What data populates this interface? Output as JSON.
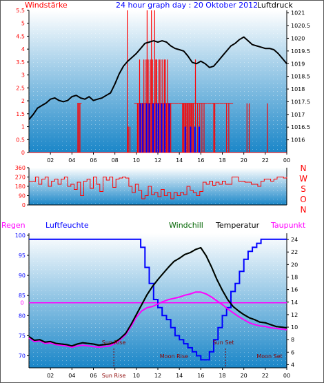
{
  "header": {
    "left": "Windstärke",
    "title": "24 hour graph day : 20 Oktober 2012",
    "right": "Luftdruck"
  },
  "footer": {
    "regen": "Regen",
    "luftfeuchte": "Luftfeuchte",
    "windchill": "Windchill",
    "temperatur": "Temperatur",
    "taupunkt": "Taupunkt"
  },
  "colors": {
    "red": "#ff0000",
    "blue": "#0000ff",
    "green": "#006400",
    "magenta": "#ff00ff",
    "black": "#000000",
    "panel_top": "#ffffff",
    "panel_bottom": "#1a86c8"
  },
  "chart_data": [
    {
      "type": "line",
      "title": "24 hour graph day : 20 Oktober 2012",
      "xlabel": "",
      "ylabel_left": "Windstärke",
      "ylabel_right": "Luftdruck",
      "x_ticks": [
        "02",
        "04",
        "06",
        "08",
        "10",
        "12",
        "14",
        "16",
        "18",
        "20",
        "22",
        "00"
      ],
      "ylim_left": [
        0,
        5.5
      ],
      "y_left_ticks": [
        "0",
        "0.5",
        "1",
        "1.5",
        "2",
        "2.5",
        "3",
        "3.5",
        "4",
        "4.5",
        "5",
        "5.5"
      ],
      "ylim_right": [
        1015.5,
        1021.1
      ],
      "y_right_ticks": [
        "1016",
        "1016.5",
        "1017",
        "1017.5",
        "1018",
        "1018.5",
        "1019",
        "1019.5",
        "1020",
        "1020.5",
        "1021"
      ],
      "series": [
        {
          "name": "Luftdruck",
          "axis": "right",
          "x": [
            0.0,
            0.4,
            0.8,
            1.2,
            1.6,
            2.0,
            2.4,
            2.8,
            3.2,
            3.6,
            4.0,
            4.4,
            4.8,
            5.2,
            5.6,
            6.0,
            6.4,
            6.8,
            7.2,
            7.6,
            8.0,
            8.4,
            8.8,
            9.2,
            9.6,
            10.0,
            10.4,
            10.8,
            11.2,
            11.6,
            12.0,
            12.4,
            12.8,
            13.2,
            13.6,
            14.0,
            14.4,
            14.8,
            15.2,
            15.6,
            16.0,
            16.4,
            16.8,
            17.2,
            17.6,
            18.0,
            18.4,
            18.8,
            19.2,
            19.6,
            20.0,
            20.4,
            20.8,
            21.2,
            21.6,
            22.0,
            22.4,
            22.8,
            23.2,
            23.6,
            24.0
          ],
          "values": [
            1016.8,
            1017.0,
            1017.25,
            1017.35,
            1017.45,
            1017.6,
            1017.65,
            1017.55,
            1017.5,
            1017.55,
            1017.7,
            1017.75,
            1017.65,
            1017.6,
            1017.7,
            1017.55,
            1017.6,
            1017.65,
            1017.75,
            1017.85,
            1018.2,
            1018.6,
            1018.9,
            1019.1,
            1019.25,
            1019.4,
            1019.6,
            1019.8,
            1019.85,
            1019.9,
            1019.85,
            1019.9,
            1019.85,
            1019.7,
            1019.6,
            1019.55,
            1019.5,
            1019.3,
            1019.05,
            1019.0,
            1019.1,
            1019.0,
            1018.85,
            1018.9,
            1019.1,
            1019.3,
            1019.5,
            1019.7,
            1019.8,
            1019.95,
            1020.05,
            1019.9,
            1019.75,
            1019.7,
            1019.65,
            1019.6,
            1019.6,
            1019.55,
            1019.4,
            1019.2,
            1019.0
          ]
        },
        {
          "name": "Windstärke",
          "axis": "left",
          "x": [
            4.55,
            4.65,
            4.75,
            9.15,
            9.25,
            9.4,
            10.1,
            10.2,
            10.3,
            10.45,
            10.55,
            10.7,
            10.8,
            10.9,
            11.0,
            11.1,
            11.2,
            11.3,
            11.4,
            11.5,
            11.6,
            11.7,
            11.8,
            11.9,
            12.0,
            12.1,
            12.2,
            12.3,
            12.4,
            12.5,
            12.6,
            12.7,
            12.8,
            12.9,
            13.0,
            13.1,
            13.2,
            14.3,
            14.4,
            14.5,
            14.6,
            14.7,
            14.8,
            14.9,
            15.0,
            15.1,
            15.2,
            15.3,
            15.5,
            15.7,
            15.9,
            16.1,
            16.3,
            17.2,
            17.3,
            18.4,
            18.6,
            20.3,
            20.5,
            22.2
          ],
          "values": [
            1.9,
            1.9,
            1.9,
            5.5,
            1.0,
            1.0,
            1.9,
            1.9,
            3.6,
            1.9,
            1.9,
            3.6,
            1.9,
            3.6,
            5.5,
            3.6,
            1.9,
            3.6,
            5.5,
            3.6,
            1.9,
            5.5,
            3.6,
            3.6,
            1.9,
            3.6,
            3.6,
            1.9,
            3.6,
            1.9,
            3.6,
            3.6,
            1.9,
            3.6,
            1.9,
            1.9,
            1.9,
            1.9,
            1.9,
            1.9,
            1.9,
            1.9,
            1.9,
            1.9,
            1.9,
            1.9,
            1.9,
            1.9,
            3.6,
            1.9,
            1.9,
            1.9,
            1.9,
            1.9,
            1.9,
            1.9,
            1.9,
            1.9,
            1.9,
            1.9
          ]
        },
        {
          "name": "Böen",
          "axis": "left",
          "x": [
            10.35,
            10.6,
            10.95,
            11.2,
            11.55,
            11.85,
            12.05,
            12.35,
            12.65,
            13.05,
            14.55,
            15.05,
            15.45,
            15.85
          ],
          "values": [
            1.9,
            1.9,
            1.9,
            1.9,
            1.9,
            1.9,
            1.9,
            1.9,
            1.9,
            1.9,
            1.0,
            1.0,
            1.0,
            1.0
          ]
        }
      ]
    },
    {
      "type": "line",
      "title": "",
      "ylim": [
        0,
        360
      ],
      "y_ticks": [
        "0",
        "90",
        "180",
        "270",
        "360"
      ],
      "compass_labels": [
        "N",
        "W",
        "S",
        "O",
        "N"
      ],
      "series": [
        {
          "name": "Windrichtung",
          "x": [
            0.0,
            0.3,
            0.6,
            0.9,
            1.2,
            1.5,
            1.8,
            2.1,
            2.4,
            2.7,
            3.0,
            3.3,
            3.6,
            3.9,
            4.2,
            4.5,
            4.8,
            5.1,
            5.4,
            5.7,
            6.0,
            6.3,
            6.6,
            6.9,
            7.2,
            7.5,
            7.8,
            8.1,
            8.4,
            8.7,
            9.0,
            9.3,
            9.6,
            9.9,
            10.2,
            10.5,
            10.8,
            11.1,
            11.4,
            11.7,
            12.0,
            12.3,
            12.6,
            12.9,
            13.2,
            13.5,
            13.8,
            14.1,
            14.4,
            14.7,
            15.0,
            15.3,
            15.6,
            15.9,
            16.2,
            16.5,
            16.8,
            17.1,
            17.4,
            17.7,
            18.0,
            18.3,
            18.6,
            18.9,
            19.2,
            19.5,
            19.8,
            20.1,
            20.4,
            20.7,
            21.0,
            21.3,
            21.6,
            21.9,
            22.2,
            22.5,
            22.8,
            23.1,
            23.4,
            23.7,
            24.0
          ],
          "values": [
            225,
            225,
            270,
            200,
            250,
            270,
            180,
            230,
            250,
            200,
            250,
            270,
            180,
            200,
            150,
            220,
            90,
            230,
            250,
            160,
            270,
            200,
            130,
            270,
            240,
            270,
            170,
            250,
            260,
            270,
            260,
            180,
            120,
            200,
            140,
            60,
            90,
            180,
            100,
            120,
            80,
            150,
            90,
            120,
            60,
            120,
            90,
            120,
            100,
            180,
            140,
            120,
            90,
            130,
            220,
            200,
            230,
            190,
            220,
            200,
            230,
            200,
            200,
            270,
            270,
            230,
            230,
            220,
            220,
            200,
            200,
            180,
            230,
            250,
            250,
            230,
            250,
            270,
            270,
            260,
            270
          ]
        }
      ]
    },
    {
      "type": "line",
      "title": "",
      "ylim_left": [
        67,
        100.5
      ],
      "y_left_ticks": [
        "70",
        "75",
        "80",
        "85",
        "90",
        "95",
        "100"
      ],
      "ylim_right": [
        3.5,
        25
      ],
      "y_right_ticks": [
        "4",
        "6",
        "8",
        "10",
        "12",
        "14",
        "16",
        "18",
        "20",
        "22",
        "24"
      ],
      "regen_axis_ticks": [
        "0"
      ],
      "annotations": [
        "Sun Rise",
        "Moon Rise",
        "Sun Set",
        "Moon Set",
        "Sun Rise"
      ],
      "series": [
        {
          "name": "Luftfeuchte",
          "axis": "left",
          "x": [
            0.0,
            10.0,
            10.4,
            10.8,
            11.2,
            11.6,
            12.0,
            12.4,
            12.8,
            13.2,
            13.6,
            14.0,
            14.4,
            14.8,
            15.2,
            15.6,
            16.0,
            16.4,
            16.8,
            17.2,
            17.6,
            18.0,
            18.4,
            18.8,
            19.2,
            19.6,
            20.0,
            20.4,
            20.8,
            21.2,
            21.6,
            22.0,
            24.0
          ],
          "values": [
            99,
            99,
            97,
            92,
            88,
            84,
            82,
            80,
            79,
            77,
            75,
            74,
            73,
            72,
            71,
            70,
            69,
            69,
            71,
            74,
            77,
            80,
            82,
            86,
            88,
            91,
            94,
            96,
            97,
            98,
            99,
            99,
            99
          ]
        },
        {
          "name": "Temperatur",
          "axis": "right",
          "x": [
            0.0,
            0.5,
            1.0,
            1.5,
            2.0,
            2.5,
            3.0,
            3.5,
            4.0,
            4.5,
            5.0,
            5.5,
            6.0,
            6.5,
            7.0,
            7.5,
            8.0,
            8.5,
            9.0,
            9.5,
            10.0,
            10.5,
            11.0,
            11.5,
            12.0,
            12.5,
            13.0,
            13.5,
            14.0,
            14.5,
            15.0,
            15.5,
            16.0,
            16.5,
            17.0,
            17.5,
            18.0,
            18.5,
            19.0,
            19.5,
            20.0,
            20.5,
            21.0,
            21.5,
            22.0,
            22.5,
            23.0,
            23.5,
            24.0
          ],
          "values": [
            8.5,
            7.9,
            8.0,
            7.6,
            7.7,
            7.4,
            7.3,
            7.2,
            7.0,
            7.3,
            7.5,
            7.4,
            7.3,
            7.1,
            7.2,
            7.3,
            7.6,
            8.2,
            9.0,
            10.4,
            12.0,
            13.6,
            15.2,
            16.5,
            17.6,
            18.6,
            19.6,
            20.5,
            21.0,
            21.6,
            21.9,
            22.4,
            22.7,
            21.4,
            19.6,
            17.6,
            15.9,
            14.4,
            13.3,
            12.6,
            12.0,
            11.5,
            11.2,
            10.8,
            10.7,
            10.4,
            10.1,
            10.0,
            9.9
          ]
        },
        {
          "name": "Windchill",
          "axis": "right",
          "x": [
            0.0,
            0.5,
            1.0,
            1.5,
            2.0,
            2.5,
            3.0,
            3.5,
            4.0,
            4.5,
            5.0,
            5.5,
            6.0,
            6.5,
            7.0,
            7.5,
            8.0,
            8.5,
            9.0,
            9.5,
            10.0,
            10.5,
            11.0,
            11.5,
            12.0,
            12.5,
            13.0,
            13.5,
            14.0,
            14.5,
            15.0,
            15.5,
            16.0,
            16.5,
            17.0,
            17.5,
            18.0,
            18.5,
            19.0,
            19.5,
            20.0,
            20.5,
            21.0,
            21.5,
            22.0,
            22.5,
            23.0,
            23.5,
            24.0
          ],
          "values": [
            8.5,
            7.9,
            8.0,
            7.6,
            7.7,
            7.4,
            7.3,
            7.2,
            7.0,
            7.3,
            7.5,
            7.4,
            7.3,
            7.1,
            7.2,
            7.3,
            7.6,
            8.2,
            9.0,
            10.4,
            12.0,
            13.6,
            15.2,
            16.5,
            17.6,
            18.6,
            19.6,
            20.5,
            21.0,
            21.6,
            21.9,
            22.4,
            22.7,
            21.4,
            19.6,
            17.6,
            15.9,
            14.4,
            13.3,
            12.6,
            12.0,
            11.5,
            11.2,
            10.8,
            10.7,
            10.4,
            10.1,
            10.0,
            9.9
          ]
        },
        {
          "name": "Taupunkt",
          "axis": "right",
          "x": [
            0.0,
            0.5,
            1.0,
            1.5,
            2.0,
            2.5,
            3.0,
            3.5,
            4.0,
            4.5,
            5.0,
            5.5,
            6.0,
            6.5,
            7.0,
            7.5,
            8.0,
            8.5,
            9.0,
            9.5,
            10.0,
            10.5,
            11.0,
            11.5,
            12.0,
            12.5,
            13.0,
            13.5,
            14.0,
            14.5,
            15.0,
            15.5,
            16.0,
            16.5,
            17.0,
            17.5,
            18.0,
            18.5,
            19.0,
            19.5,
            20.0,
            20.5,
            21.0,
            21.5,
            22.0,
            22.5,
            23.0,
            23.5,
            24.0
          ],
          "values": [
            8.3,
            7.7,
            7.8,
            7.4,
            7.5,
            7.2,
            7.1,
            7.0,
            6.8,
            7.0,
            7.1,
            7.0,
            6.9,
            6.8,
            6.9,
            7.0,
            7.4,
            8.0,
            8.8,
            10.1,
            11.6,
            12.6,
            13.1,
            13.3,
            13.7,
            14.1,
            14.4,
            14.6,
            14.8,
            15.1,
            15.3,
            15.6,
            15.6,
            15.3,
            14.8,
            14.2,
            13.6,
            12.9,
            12.3,
            11.7,
            11.2,
            10.7,
            10.4,
            10.2,
            10.1,
            9.9,
            9.8,
            9.7,
            9.6
          ]
        },
        {
          "name": "Regen",
          "axis": "right",
          "x": [
            0,
            24
          ],
          "values": [
            13.9,
            13.9
          ]
        }
      ]
    }
  ]
}
